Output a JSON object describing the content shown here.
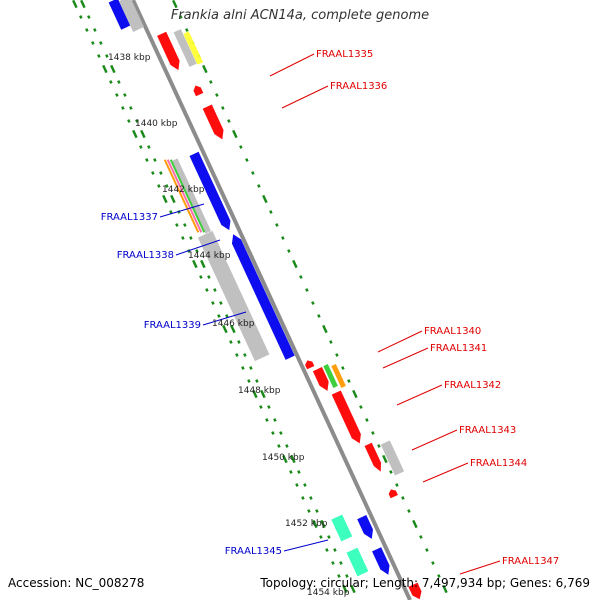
{
  "title": "Frankia alni ACN14a, complete genome",
  "accession_text": "Accession: NC_008278",
  "summary_text": "Topology: circular; Length: 7,497,934 bp; Genes: 6,769",
  "colors": {
    "backbone": "#8c8c8c",
    "tick": "#1a8a1a",
    "label_red": "#e00000",
    "label_blue": "#0000cc",
    "feature_red": "#ff0000",
    "feature_blue": "#0000ee",
    "feature_gray": "#bdbdbd",
    "feature_yellow": "#ffff33",
    "feature_green": "#33cc33",
    "feature_orange": "#ff9900",
    "feature_teal": "#33ffbb",
    "feature_pink": "#ff66aa"
  },
  "scale_labels": [
    "1438 kbp",
    "1440 kbp",
    "1442 kbp",
    "1444 kbp",
    "1446 kbp",
    "1448 kbp",
    "1450 kbp",
    "1452 kbp",
    "1454 kbp"
  ],
  "gene_labels": [
    {
      "text": "FRAAL1335",
      "color": "red"
    },
    {
      "text": "FRAAL1336",
      "color": "red"
    },
    {
      "text": "FRAAL1337",
      "color": "blue"
    },
    {
      "text": "FRAAL1338",
      "color": "blue"
    },
    {
      "text": "FRAAL1339",
      "color": "blue"
    },
    {
      "text": "FRAAL1340",
      "color": "red"
    },
    {
      "text": "FRAAL1341",
      "color": "red"
    },
    {
      "text": "FRAAL1342",
      "color": "red"
    },
    {
      "text": "FRAAL1343",
      "color": "red"
    },
    {
      "text": "FRAAL1344",
      "color": "red"
    },
    {
      "text": "FRAAL1345",
      "color": "blue"
    },
    {
      "text": "FRAAL1347",
      "color": "red"
    }
  ]
}
